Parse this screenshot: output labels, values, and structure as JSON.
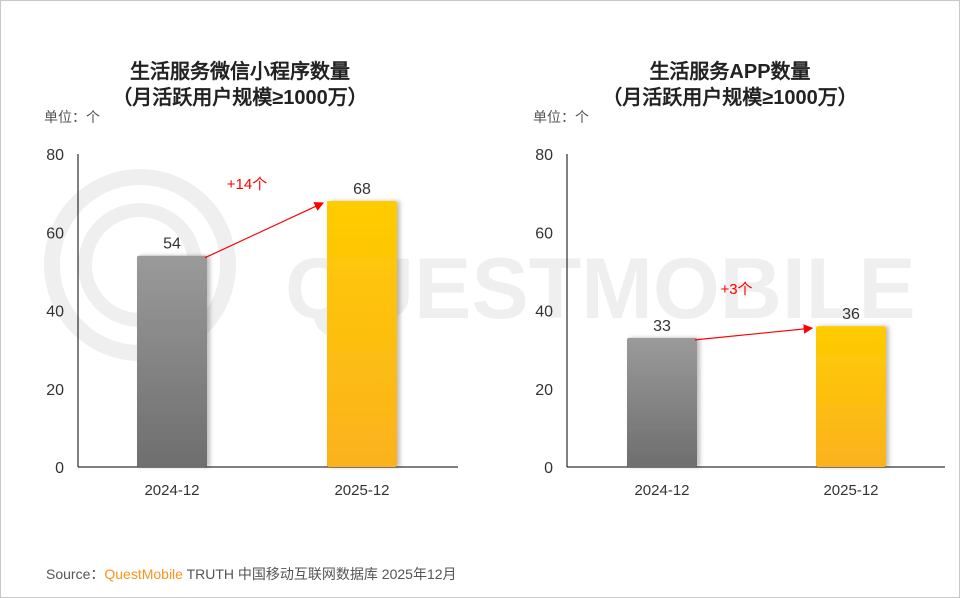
{
  "chart_data": [
    {
      "type": "bar",
      "title": "生活服务微信小程序数量",
      "subtitle": "（月活跃用户规模≥1000万）",
      "unit_label": "单位：个",
      "categories": [
        "2024-12",
        "2025-12"
      ],
      "values": [
        54,
        68
      ],
      "data_labels": [
        "54",
        "68"
      ],
      "ylim": [
        0,
        80
      ],
      "yticks": [
        "0",
        "20",
        "40",
        "60",
        "80"
      ],
      "annotation": "+14个",
      "colors": [
        "#8c8c8c",
        "#ffc000"
      ],
      "grid": false
    },
    {
      "type": "bar",
      "title": "生活服务APP数量",
      "subtitle": "（月活跃用户规模≥1000万）",
      "unit_label": "单位：个",
      "categories": [
        "2024-12",
        "2025-12"
      ],
      "values": [
        33,
        36
      ],
      "data_labels": [
        "33",
        "36"
      ],
      "ylim": [
        0,
        80
      ],
      "yticks": [
        "0",
        "20",
        "40",
        "60",
        "80"
      ],
      "annotation": "+3个",
      "colors": [
        "#8c8c8c",
        "#ffc000"
      ],
      "grid": false
    }
  ],
  "watermark": "QUESTMOBILE",
  "source": {
    "prefix": "Source：",
    "brand": "QuestMobile",
    "text": " TRUTH 中国移动互联网数据库 2025年12月"
  },
  "colors": {
    "arrow": "#ff0000",
    "brand": "#f7941d"
  }
}
